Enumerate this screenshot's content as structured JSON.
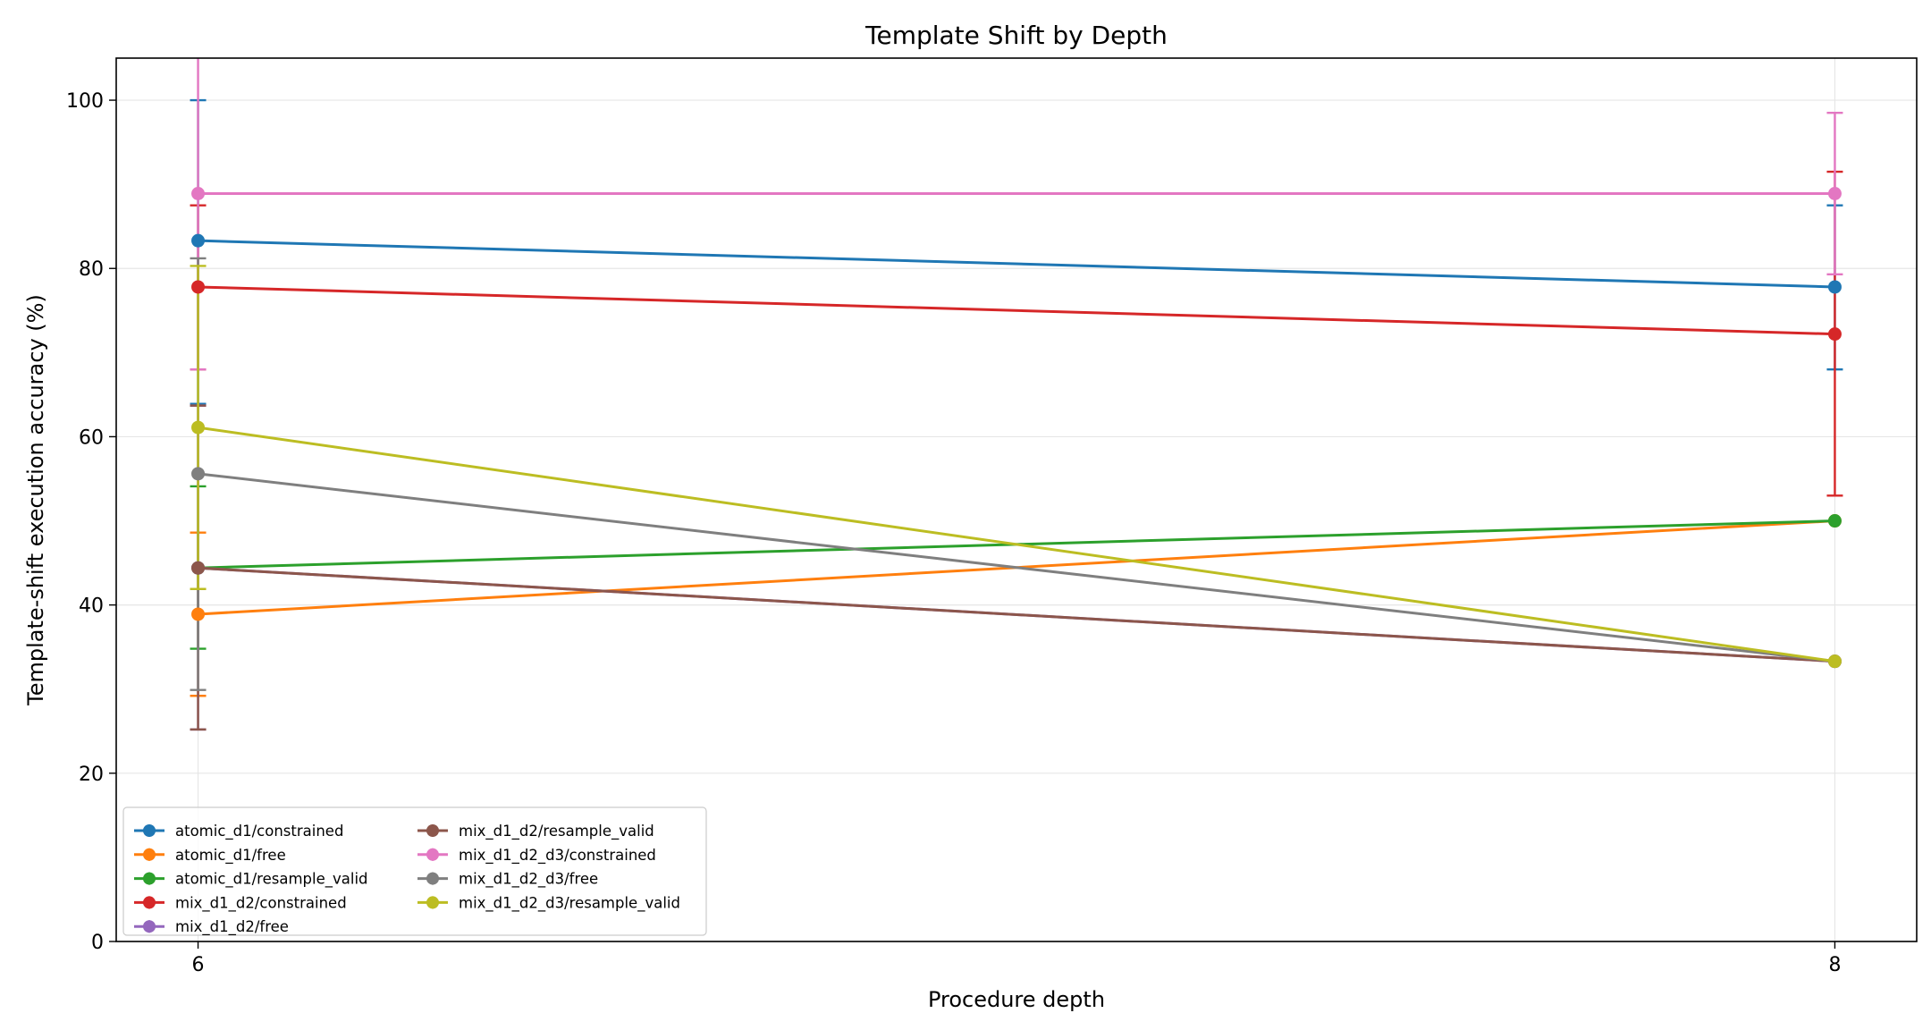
{
  "chart_data": {
    "type": "line",
    "title": "Template Shift by Depth",
    "xlabel": "Procedure depth",
    "ylabel": "Template-shift execution accuracy (%)",
    "x": [
      6,
      8
    ],
    "x_ticks": [
      "6",
      "8"
    ],
    "xlim": [
      5.9,
      8.1
    ],
    "y_ticks": [
      "0",
      "20",
      "40",
      "60",
      "80",
      "100"
    ],
    "ylim": [
      0,
      105
    ],
    "grid": true,
    "legend_position": "lower-left",
    "legend_columns": 2,
    "series": [
      {
        "name": "atomic_d1/constrained",
        "color": "#1f77b4",
        "values": [
          83.3,
          77.8
        ],
        "err_low": [
          63.9,
          68.0
        ],
        "err_high": [
          100.0,
          87.5
        ]
      },
      {
        "name": "atomic_d1/free",
        "color": "#ff7f0e",
        "values": [
          38.9,
          50.0
        ],
        "err_low": [
          29.2,
          50.0
        ],
        "err_high": [
          48.6,
          50.0
        ]
      },
      {
        "name": "atomic_d1/resample_valid",
        "color": "#2ca02c",
        "values": [
          44.4,
          50.0
        ],
        "err_low": [
          34.8,
          50.0
        ],
        "err_high": [
          54.1,
          50.0
        ]
      },
      {
        "name": "mix_d1_d2/constrained",
        "color": "#d62728",
        "values": [
          77.8,
          72.2
        ],
        "err_low": [
          68.0,
          53.0
        ],
        "err_high": [
          87.5,
          91.5
        ]
      },
      {
        "name": "mix_d1_d2/free",
        "color": "#9467bd",
        "values": [
          44.4,
          33.3
        ],
        "err_low": [
          25.2,
          33.3
        ],
        "err_high": [
          63.7,
          33.3
        ]
      },
      {
        "name": "mix_d1_d2/resample_valid",
        "color": "#8c564b",
        "values": [
          44.4,
          33.3
        ],
        "err_low": [
          25.2,
          33.3
        ],
        "err_high": [
          63.7,
          33.3
        ]
      },
      {
        "name": "mix_d1_d2_d3/constrained",
        "color": "#e377c2",
        "values": [
          88.9,
          88.9
        ],
        "err_low": [
          68.0,
          79.3
        ],
        "err_high": [
          109.7,
          98.5
        ]
      },
      {
        "name": "mix_d1_d2_d3/free",
        "color": "#7f7f7f",
        "values": [
          55.6,
          33.3
        ],
        "err_low": [
          29.9,
          33.3
        ],
        "err_high": [
          81.2,
          33.3
        ]
      },
      {
        "name": "mix_d1_d2_d3/resample_valid",
        "color": "#bcbd22",
        "values": [
          61.1,
          33.3
        ],
        "err_low": [
          41.9,
          33.3
        ],
        "err_high": [
          80.3,
          33.3
        ]
      }
    ]
  }
}
